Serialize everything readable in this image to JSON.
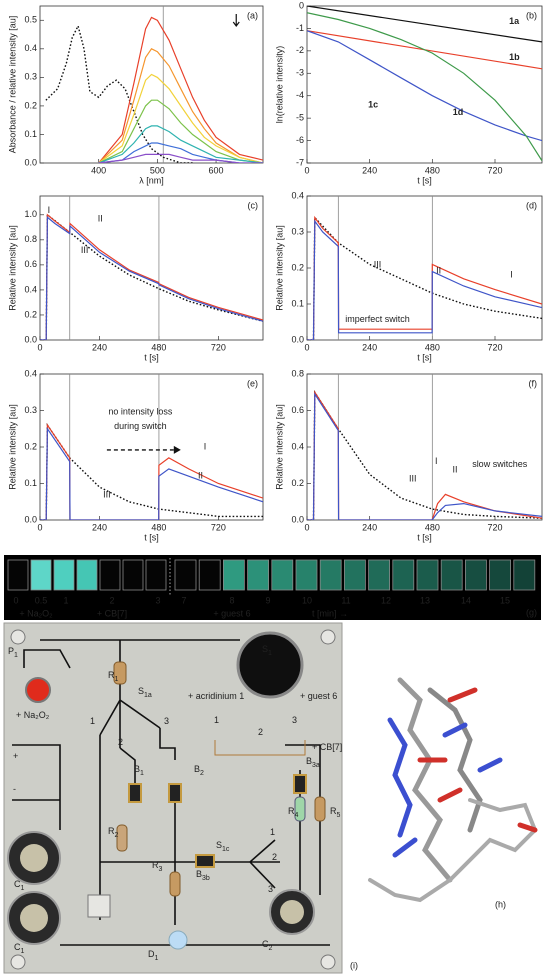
{
  "chart_data": [
    {
      "type": "line",
      "panel_label": "(a)",
      "xlabel": "λ [nm]",
      "ylabel": "Absorbance / relative intensity [au]",
      "xlim": [
        300,
        680
      ],
      "xticks": [
        400,
        500,
        600
      ],
      "ylim": [
        0,
        0.55
      ],
      "yticks": [
        {
          "value": 0,
          "label": "0.0"
        },
        0.1,
        0.2,
        0.3,
        0.4,
        0.5
      ],
      "vlines": [
        510
      ],
      "series": [
        {
          "color": "#111111",
          "style": "dotted",
          "x": [
            310,
            330,
            345,
            355,
            365,
            375,
            385,
            400,
            415,
            430,
            445,
            460,
            475,
            490,
            510,
            540,
            560
          ],
          "values": [
            0.22,
            0.26,
            0.35,
            0.44,
            0.48,
            0.4,
            0.25,
            0.23,
            0.27,
            0.29,
            0.26,
            0.18,
            0.1,
            0.05,
            0.02,
            0,
            0
          ]
        },
        {
          "color": "#e8402a",
          "x": [
            400,
            440,
            460,
            480,
            490,
            500,
            520,
            540,
            560,
            580,
            600,
            640,
            680
          ],
          "values": [
            0,
            0.1,
            0.28,
            0.47,
            0.51,
            0.5,
            0.43,
            0.33,
            0.23,
            0.15,
            0.09,
            0.03,
            0.01
          ]
        },
        {
          "color": "#f5962e",
          "x": [
            400,
            440,
            460,
            480,
            490,
            500,
            520,
            540,
            560,
            580,
            600,
            640,
            680
          ],
          "values": [
            0,
            0.08,
            0.22,
            0.37,
            0.4,
            0.39,
            0.34,
            0.26,
            0.18,
            0.12,
            0.07,
            0.02,
            0
          ]
        },
        {
          "color": "#f2d23a",
          "x": [
            400,
            440,
            460,
            480,
            490,
            500,
            520,
            540,
            560,
            580,
            600,
            640,
            680
          ],
          "values": [
            0,
            0.06,
            0.17,
            0.29,
            0.31,
            0.3,
            0.26,
            0.2,
            0.14,
            0.09,
            0.06,
            0.02,
            0
          ]
        },
        {
          "color": "#7cc24a",
          "x": [
            400,
            440,
            460,
            480,
            490,
            500,
            520,
            540,
            560,
            580,
            600,
            640,
            680
          ],
          "values": [
            0,
            0.04,
            0.12,
            0.2,
            0.22,
            0.22,
            0.19,
            0.14,
            0.1,
            0.07,
            0.04,
            0.01,
            0
          ]
        },
        {
          "color": "#2fb3b0",
          "x": [
            400,
            440,
            460,
            480,
            490,
            500,
            520,
            540,
            560,
            580,
            600,
            640,
            680
          ],
          "values": [
            0,
            0.03,
            0.07,
            0.12,
            0.13,
            0.13,
            0.11,
            0.08,
            0.06,
            0.04,
            0.02,
            0.01,
            0
          ]
        },
        {
          "color": "#3f6fd8",
          "x": [
            400,
            440,
            460,
            480,
            490,
            500,
            520,
            540,
            560,
            580,
            600,
            640,
            680
          ],
          "values": [
            0,
            0.01,
            0.04,
            0.06,
            0.07,
            0.07,
            0.06,
            0.05,
            0.03,
            0.02,
            0.01,
            0,
            0
          ]
        },
        {
          "color": "#8a4fc9",
          "x": [
            400,
            440,
            460,
            480,
            490,
            500,
            520,
            540,
            560,
            580,
            600,
            640,
            680
          ],
          "values": [
            0,
            0.01,
            0.02,
            0.03,
            0.03,
            0.03,
            0.03,
            0.02,
            0.01,
            0.01,
            0.01,
            0,
            0
          ]
        }
      ]
    },
    {
      "type": "line",
      "panel_label": "(b)",
      "xlabel": "t [s]",
      "ylabel": "ln(relative intensity)",
      "xlim": [
        0,
        900
      ],
      "xticks": [
        0,
        240,
        480,
        720
      ],
      "ylim": [
        -7,
        0
      ],
      "yticks": [
        0,
        -1,
        -2,
        -3,
        -4,
        -5,
        -6,
        -7
      ],
      "series": [
        {
          "name": "1a",
          "color": "#111111",
          "x": [
            0,
            900
          ],
          "values": [
            0,
            -1.6
          ]
        },
        {
          "name": "1b",
          "color": "#e8402a",
          "x": [
            0,
            900
          ],
          "values": [
            -1.1,
            -2.8
          ]
        },
        {
          "name": "1c",
          "color": "#3f55c8",
          "x": [
            0,
            120,
            240,
            360,
            480,
            600,
            720,
            840,
            900
          ],
          "values": [
            -1.1,
            -1.6,
            -2.4,
            -3.2,
            -4,
            -4.7,
            -5.3,
            -5.8,
            -6.0
          ]
        },
        {
          "name": "1d",
          "color": "#3e9a4a",
          "x": [
            0,
            120,
            240,
            360,
            480,
            600,
            720,
            840,
            900
          ],
          "values": [
            -0.3,
            -0.6,
            -1.0,
            -1.5,
            -2.1,
            -3.0,
            -4.2,
            -5.8,
            -6.9
          ]
        }
      ]
    },
    {
      "type": "line",
      "panel_label": "(c)",
      "xlabel": "t [s]",
      "ylabel": "Relative intensity [au]",
      "xlim": [
        0,
        900
      ],
      "xticks": [
        0,
        240,
        480,
        720
      ],
      "ylim": [
        0,
        1.15
      ],
      "yticks": [
        {
          "value": 0,
          "label": "0.0"
        },
        0.2,
        0.4,
        0.6,
        0.8,
        {
          "value": 1,
          "label": "1.0"
        }
      ],
      "vlines": [
        120,
        480
      ],
      "annotations": [
        {
          "text": "I",
          "color": "#e8402a"
        },
        {
          "text": "II",
          "color": "#3f55c8"
        },
        {
          "text": "III",
          "color": "#222222"
        }
      ],
      "series": [
        {
          "color": "#111111",
          "style": "dotted",
          "x": [
            0,
            25,
            30,
            120,
            240,
            360,
            480,
            600,
            720,
            900
          ],
          "values": [
            0,
            0,
            1.0,
            0.86,
            0.67,
            0.52,
            0.41,
            0.31,
            0.24,
            0.15
          ]
        },
        {
          "color": "#e8402a",
          "x": [
            0,
            25,
            30,
            60,
            120,
            121,
            240,
            360,
            479,
            480,
            600,
            720,
            900
          ],
          "values": [
            0,
            0,
            1.0,
            0.95,
            0.86,
            0.93,
            0.72,
            0.56,
            0.46,
            0.45,
            0.34,
            0.26,
            0.16
          ]
        },
        {
          "color": "#3f55c8",
          "x": [
            0,
            25,
            30,
            60,
            120,
            121,
            240,
            360,
            479,
            480,
            600,
            720,
            900
          ],
          "values": [
            0,
            0,
            0.98,
            0.93,
            0.85,
            0.91,
            0.7,
            0.55,
            0.45,
            0.44,
            0.33,
            0.25,
            0.15
          ]
        }
      ]
    },
    {
      "type": "line",
      "panel_label": "(d)",
      "xlabel": "t [s]",
      "ylabel": "Relative intensity [au]",
      "xlim": [
        0,
        900
      ],
      "xticks": [
        0,
        240,
        480,
        720
      ],
      "ylim": [
        0,
        0.4
      ],
      "yticks": [
        {
          "value": 0,
          "label": "0.0"
        },
        0.1,
        0.2,
        0.3,
        0.4
      ],
      "vlines": [
        120,
        480
      ],
      "annotations": [
        {
          "text": "III",
          "color": "#222222"
        },
        {
          "text": "imperfect switch",
          "color": "#222222"
        },
        {
          "text": "II",
          "color": "#222222"
        },
        {
          "text": "I",
          "color": "#222222"
        }
      ],
      "series": [
        {
          "color": "#111111",
          "style": "dotted",
          "x": [
            0,
            25,
            30,
            120,
            240,
            360,
            480,
            600,
            720,
            900
          ],
          "values": [
            0,
            0,
            0.34,
            0.27,
            0.21,
            0.17,
            0.13,
            0.1,
            0.08,
            0.06
          ]
        },
        {
          "color": "#e8402a",
          "x": [
            0,
            25,
            30,
            60,
            120,
            121,
            300,
            479,
            480,
            600,
            720,
            900
          ],
          "values": [
            0,
            0,
            0.34,
            0.31,
            0.27,
            0.03,
            0.03,
            0.03,
            0.21,
            0.17,
            0.14,
            0.1
          ]
        },
        {
          "color": "#3f55c8",
          "x": [
            0,
            25,
            30,
            60,
            120,
            121,
            300,
            479,
            480,
            600,
            720,
            900
          ],
          "values": [
            0,
            0,
            0.33,
            0.3,
            0.26,
            0.02,
            0.02,
            0.02,
            0.19,
            0.15,
            0.12,
            0.09
          ]
        }
      ]
    },
    {
      "type": "line",
      "panel_label": "(e)",
      "xlabel": "t [s]",
      "ylabel": "Relative intensity [au]",
      "xlim": [
        0,
        900
      ],
      "xticks": [
        0,
        240,
        480,
        720
      ],
      "ylim": [
        0,
        0.4
      ],
      "yticks": [
        {
          "value": 0,
          "label": "0.0"
        },
        0.1,
        0.2,
        0.3,
        0.4
      ],
      "vlines": [
        120,
        480
      ],
      "annotations": [
        {
          "text": "no intensity loss",
          "color": "#222222"
        },
        {
          "text": "during switch",
          "color": "#222222"
        },
        {
          "text": "III",
          "color": "#222222"
        },
        {
          "text": "I",
          "color": "#222222"
        },
        {
          "text": "II",
          "color": "#222222"
        }
      ],
      "series": [
        {
          "color": "#111111",
          "style": "dotted",
          "x": [
            0,
            25,
            30,
            120,
            240,
            360,
            480,
            600,
            720,
            900
          ],
          "values": [
            0,
            0,
            0.26,
            0.17,
            0.09,
            0.05,
            0.03,
            0.02,
            0.01,
            0.01
          ]
        },
        {
          "color": "#e8402a",
          "x": [
            0,
            25,
            30,
            120,
            121,
            479,
            480,
            520,
            600,
            720,
            900
          ],
          "values": [
            0,
            0,
            0.26,
            0.17,
            0,
            0,
            0.15,
            0.17,
            0.14,
            0.1,
            0.06
          ]
        },
        {
          "color": "#3f55c8",
          "x": [
            0,
            25,
            30,
            120,
            121,
            479,
            480,
            520,
            600,
            720,
            900
          ],
          "values": [
            0,
            0,
            0.25,
            0.16,
            0,
            0,
            0.12,
            0.14,
            0.12,
            0.09,
            0.05
          ]
        }
      ]
    },
    {
      "type": "line",
      "panel_label": "(f)",
      "xlabel": "t [s]",
      "ylabel": "Relative intensity [au]",
      "xlim": [
        0,
        900
      ],
      "xticks": [
        0,
        240,
        480,
        720
      ],
      "ylim": [
        0,
        0.8
      ],
      "yticks": [
        {
          "value": 0,
          "label": "0.0"
        },
        0.2,
        0.4,
        0.6,
        0.8
      ],
      "vlines": [
        120,
        480
      ],
      "annotations": [
        {
          "text": "III",
          "color": "#222222"
        },
        {
          "text": "I",
          "color": "#222222"
        },
        {
          "text": "II",
          "color": "#222222"
        },
        {
          "text": "slow switches",
          "color": "#222222"
        }
      ],
      "series": [
        {
          "color": "#111111",
          "style": "dotted",
          "x": [
            0,
            25,
            30,
            120,
            240,
            360,
            480,
            600,
            720,
            900
          ],
          "values": [
            0,
            0,
            0.7,
            0.5,
            0.25,
            0.12,
            0.06,
            0.03,
            0.02,
            0.01
          ]
        },
        {
          "color": "#e8402a",
          "x": [
            0,
            25,
            30,
            120,
            121,
            479,
            500,
            530,
            600,
            720,
            900
          ],
          "values": [
            0,
            0,
            0.7,
            0.5,
            0,
            0,
            0.09,
            0.14,
            0.1,
            0.05,
            0.01
          ]
        },
        {
          "color": "#3f55c8",
          "x": [
            0,
            25,
            30,
            120,
            121,
            479,
            500,
            530,
            600,
            720,
            900
          ],
          "values": [
            0,
            0,
            0.69,
            0.49,
            0,
            0,
            0.04,
            0.08,
            0.09,
            0.05,
            0.02
          ]
        }
      ]
    }
  ],
  "strip": {
    "panel_label": "(g)",
    "cells": [
      "#050505",
      "#5ed6c8",
      "#4fcfbf",
      "#45c6b4",
      "#050505",
      "#050505",
      "#050505",
      "#050505",
      "#050505",
      "#2f9a80",
      "#2c9179",
      "#2a8a72",
      "#27826b",
      "#257a64",
      "#22725e",
      "#206b58",
      "#1d6352",
      "#1b5c4c",
      "#195546",
      "#174e41",
      "#15483c",
      "#134237"
    ],
    "numbers": [
      {
        "text": "0",
        "color": "#ffffff"
      },
      {
        "text": "0.5",
        "color": "#f07a3a"
      },
      {
        "text": "1",
        "color": "#ffffff"
      },
      {
        "text": "2",
        "color": "#f07a3a"
      },
      {
        "text": "3",
        "color": "#ffffff"
      },
      {
        "text": "7",
        "color": "#ffffff"
      },
      {
        "text": "8",
        "color": "#f07a3a"
      },
      {
        "text": "9",
        "color": "#ffffff"
      },
      {
        "text": "10",
        "color": "#ffffff"
      },
      {
        "text": "11",
        "color": "#ffffff"
      },
      {
        "text": "12",
        "color": "#ffffff"
      },
      {
        "text": "13",
        "color": "#ffffff"
      },
      {
        "text": "14",
        "color": "#ffffff"
      },
      {
        "text": "15",
        "color": "#ffffff"
      }
    ],
    "additions": [
      {
        "text": "+ Na₂O₂",
        "color": "#f07a3a"
      },
      {
        "text": "+ CB[7]",
        "color": "#f07a3a"
      },
      {
        "text": "+ guest 6",
        "color": "#f07a3a"
      },
      {
        "text": "t [min] →",
        "color": "#ffffff"
      }
    ]
  },
  "circuit": {
    "panel_label": "(i)",
    "labels": [
      {
        "main": "P",
        "sub": "1"
      },
      {
        "main": "R",
        "sub": "1"
      },
      {
        "main": "S",
        "sub": "1a"
      },
      {
        "main": "S",
        "sub": "1"
      },
      {
        "main": "+ acridinium 1"
      },
      {
        "main": "+ guest 6"
      },
      {
        "main": "1"
      },
      {
        "main": "2"
      },
      {
        "main": "3"
      },
      {
        "main": "+ CB[7]"
      },
      {
        "main": "+ Na₂O₂"
      },
      {
        "main": "+"
      },
      {
        "main": "-"
      },
      {
        "main": "1"
      },
      {
        "main": "2"
      },
      {
        "main": "3"
      },
      {
        "main": "B",
        "sub": "1"
      },
      {
        "main": "B",
        "sub": "2"
      },
      {
        "main": "B",
        "sub": "3a"
      },
      {
        "main": "R",
        "sub": "2"
      },
      {
        "main": "R",
        "sub": "3"
      },
      {
        "main": "R",
        "sub": "4"
      },
      {
        "main": "R",
        "sub": "5"
      },
      {
        "main": "B",
        "sub": "3b"
      },
      {
        "main": "S",
        "sub": "1c"
      },
      {
        "main": "1"
      },
      {
        "main": "2"
      },
      {
        "main": "3"
      },
      {
        "main": "C",
        "sub": "1"
      },
      {
        "main": "C",
        "sub": "1"
      },
      {
        "main": "C",
        "sub": "2"
      },
      {
        "main": "D",
        "sub": "1"
      }
    ]
  },
  "molecule": {
    "panel_label": "(h)"
  }
}
